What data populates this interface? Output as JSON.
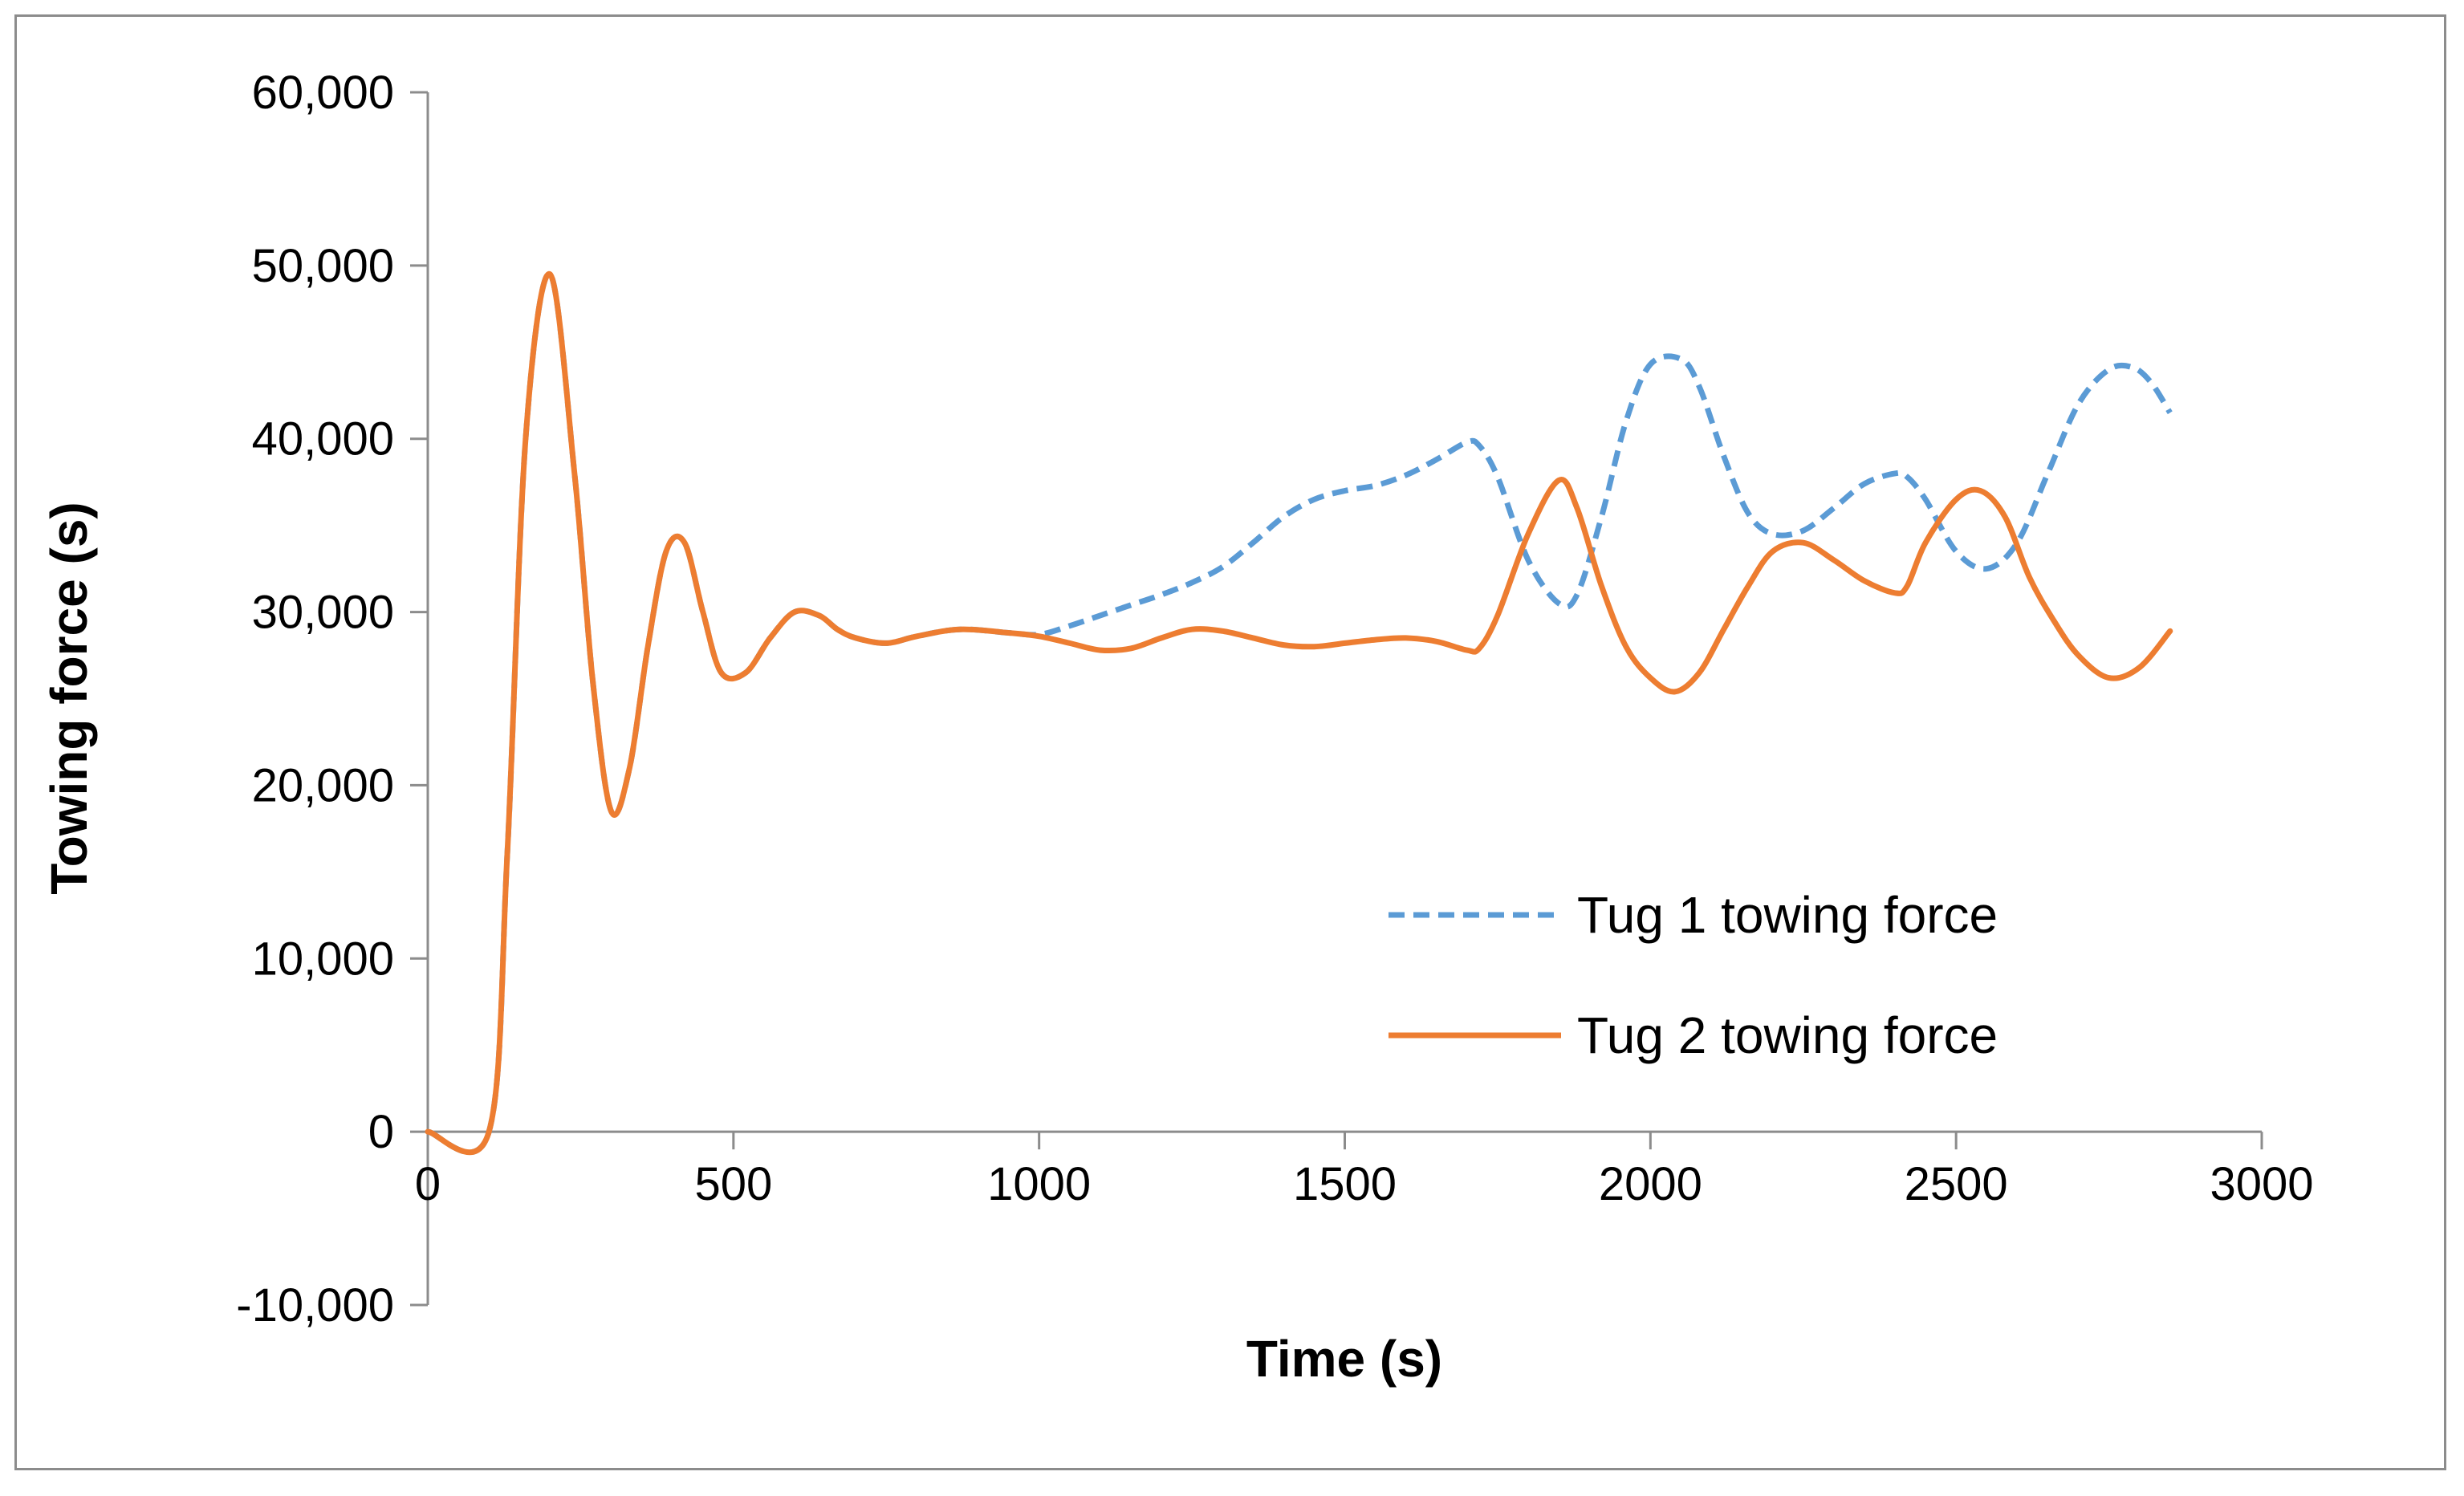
{
  "chart_data": {
    "type": "line",
    "title": "",
    "xlabel": "Time (s)",
    "ylabel": "Towing force (s)",
    "xlim": [
      0,
      3000
    ],
    "ylim": [
      -10000,
      60000
    ],
    "xticks": [
      0,
      500,
      1000,
      1500,
      2000,
      2500,
      3000
    ],
    "xtick_labels": [
      "0",
      "500",
      "1000",
      "1500",
      "2000",
      "2500",
      "3000"
    ],
    "yticks": [
      -10000,
      0,
      10000,
      20000,
      30000,
      40000,
      50000,
      60000
    ],
    "ytick_labels": [
      "-10,000",
      "0",
      "10,000",
      "20,000",
      "30,000",
      "40,000",
      "50,000",
      "60,000"
    ],
    "grid": false,
    "legend_position": "center-right",
    "series": [
      {
        "name": "Tug 1 towing force",
        "color": "#5b9bd5",
        "style": "dashed",
        "x": [
          0,
          100,
          130,
          160,
          200,
          240,
          270,
          300,
          330,
          360,
          390,
          420,
          450,
          480,
          520,
          560,
          600,
          640,
          670,
          700,
          750,
          800,
          870,
          950,
          1000,
          1050,
          1100,
          1150,
          1200,
          1250,
          1300,
          1350,
          1400,
          1450,
          1500,
          1550,
          1600,
          1650,
          1700,
          1720,
          1750,
          1800,
          1850,
          1880,
          1920,
          1960,
          2000,
          2050,
          2080,
          2120,
          2160,
          2200,
          2250,
          2300,
          2350,
          2400,
          2420,
          2450,
          2500,
          2550,
          2600,
          2650,
          2700,
          2750,
          2790,
          2820,
          2850
        ],
        "y": [
          0,
          0,
          16000,
          40000,
          49500,
          38000,
          26000,
          18500,
          21000,
          28000,
          33500,
          34000,
          30000,
          26500,
          26500,
          28500,
          30000,
          29800,
          29000,
          28500,
          28200,
          28600,
          29000,
          28800,
          28700,
          29200,
          29800,
          30400,
          31000,
          31700,
          32600,
          34000,
          35500,
          36500,
          37000,
          37300,
          37900,
          38800,
          39800,
          39600,
          37800,
          33000,
          30500,
          31000,
          35500,
          41000,
          44300,
          44600,
          43000,
          39000,
          35700,
          34500,
          34700,
          36000,
          37400,
          38000,
          37800,
          36500,
          33500,
          32500,
          34000,
          38000,
          42000,
          44000,
          44100,
          43200,
          41500
        ]
      },
      {
        "name": "Tug 2 towing force",
        "color": "#ed7d31",
        "style": "solid",
        "x": [
          0,
          100,
          130,
          160,
          200,
          240,
          270,
          300,
          330,
          360,
          390,
          420,
          450,
          480,
          520,
          560,
          600,
          640,
          670,
          700,
          750,
          800,
          870,
          950,
          1000,
          1050,
          1100,
          1150,
          1200,
          1250,
          1300,
          1350,
          1400,
          1450,
          1500,
          1550,
          1600,
          1650,
          1700,
          1720,
          1750,
          1800,
          1850,
          1880,
          1920,
          1960,
          2000,
          2040,
          2080,
          2120,
          2160,
          2200,
          2250,
          2300,
          2350,
          2400,
          2420,
          2450,
          2500,
          2540,
          2580,
          2620,
          2660,
          2700,
          2750,
          2800,
          2850
        ],
        "y": [
          0,
          0,
          16000,
          40000,
          49500,
          38000,
          26000,
          18500,
          21000,
          28000,
          33500,
          34000,
          30000,
          26500,
          26500,
          28500,
          30000,
          29800,
          29000,
          28500,
          28200,
          28600,
          29000,
          28800,
          28600,
          28200,
          27800,
          27900,
          28500,
          29000,
          28900,
          28500,
          28100,
          28000,
          28200,
          28400,
          28500,
          28300,
          27800,
          27900,
          29800,
          34500,
          37600,
          36000,
          31500,
          28000,
          26200,
          25400,
          26500,
          29000,
          31500,
          33500,
          34000,
          33000,
          31800,
          31100,
          31500,
          34000,
          36500,
          37000,
          35500,
          32000,
          29500,
          27500,
          26200,
          26800,
          28900
        ]
      }
    ]
  }
}
